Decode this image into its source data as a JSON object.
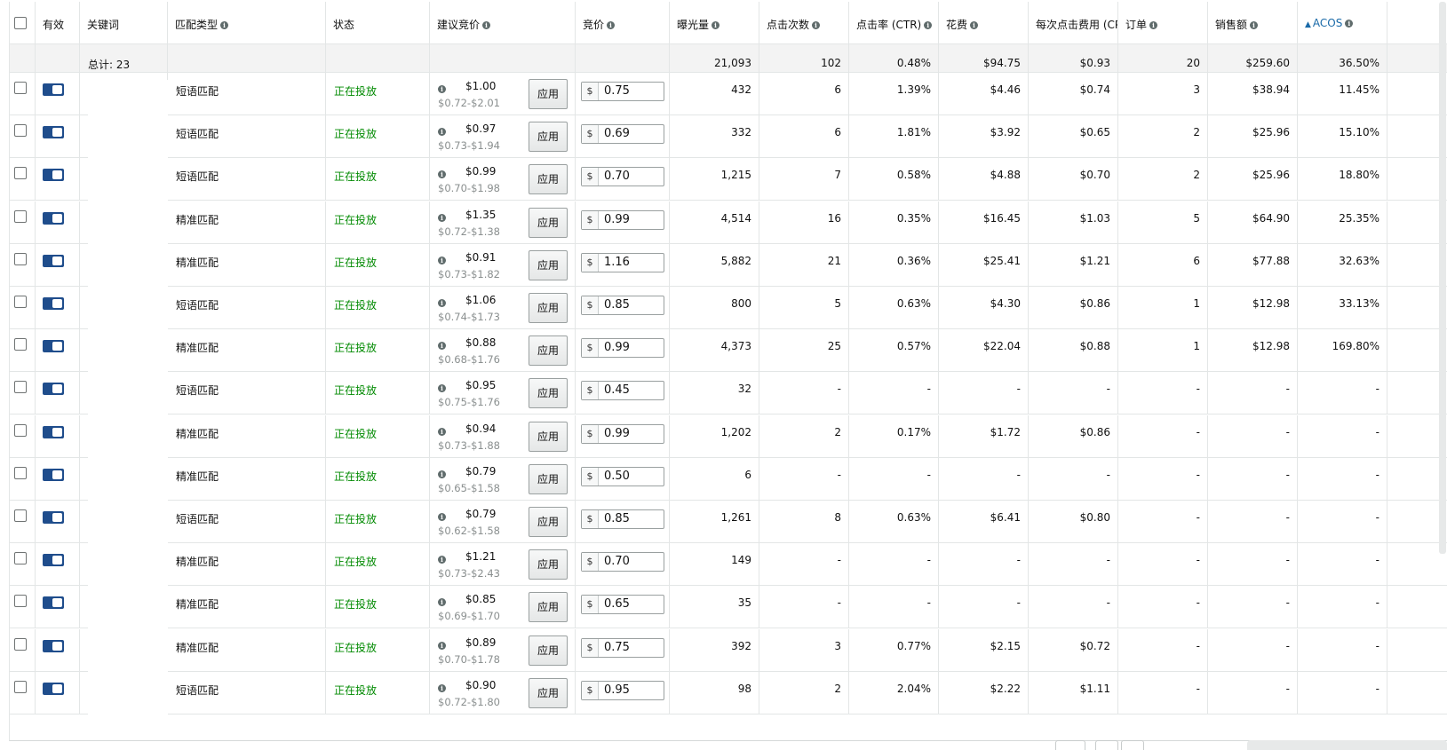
{
  "header": {
    "enabled": "有效",
    "keyword": "关键词",
    "match_type": "匹配类型",
    "status": "状态",
    "suggested_bid": "建议竞价",
    "bid": "竞价",
    "impressions": "曝光量",
    "clicks": "点击次数",
    "ctr": "点击率 (CTR)",
    "spend": "花费",
    "cpc": "每次点击费用 (CPC)",
    "orders": "订单",
    "sales": "销售额",
    "acos": "ACOS"
  },
  "totals": {
    "label": "总计: 23",
    "impressions": "21,093",
    "clicks": "102",
    "ctr": "0.48%",
    "spend": "$94.75",
    "cpc": "$0.93",
    "orders": "20",
    "sales": "$259.60",
    "acos": "36.50%"
  },
  "apply_label": "应用",
  "currency_symbol": "$",
  "status_color": "#008a00",
  "toggle_color": "#1f4d8c",
  "rows": [
    {
      "match": "短语匹配",
      "status": "正在投放",
      "sug": "$1.00",
      "range": "$0.72-$2.01",
      "bid": "0.75",
      "impr": "432",
      "clicks": "6",
      "ctr": "1.39%",
      "spend": "$4.46",
      "cpc": "$0.74",
      "orders": "3",
      "sales": "$38.94",
      "acos": "11.45%"
    },
    {
      "match": "短语匹配",
      "status": "正在投放",
      "sug": "$0.97",
      "range": "$0.73-$1.94",
      "bid": "0.69",
      "impr": "332",
      "clicks": "6",
      "ctr": "1.81%",
      "spend": "$3.92",
      "cpc": "$0.65",
      "orders": "2",
      "sales": "$25.96",
      "acos": "15.10%"
    },
    {
      "match": "短语匹配",
      "status": "正在投放",
      "sug": "$0.99",
      "range": "$0.70-$1.98",
      "bid": "0.70",
      "impr": "1,215",
      "clicks": "7",
      "ctr": "0.58%",
      "spend": "$4.88",
      "cpc": "$0.70",
      "orders": "2",
      "sales": "$25.96",
      "acos": "18.80%"
    },
    {
      "match": "精准匹配",
      "status": "正在投放",
      "sug": "$1.35",
      "range": "$0.72-$1.38",
      "bid": "0.99",
      "impr": "4,514",
      "clicks": "16",
      "ctr": "0.35%",
      "spend": "$16.45",
      "cpc": "$1.03",
      "orders": "5",
      "sales": "$64.90",
      "acos": "25.35%"
    },
    {
      "match": "精准匹配",
      "status": "正在投放",
      "sug": "$0.91",
      "range": "$0.73-$1.82",
      "bid": "1.16",
      "impr": "5,882",
      "clicks": "21",
      "ctr": "0.36%",
      "spend": "$25.41",
      "cpc": "$1.21",
      "orders": "6",
      "sales": "$77.88",
      "acos": "32.63%"
    },
    {
      "match": "短语匹配",
      "status": "正在投放",
      "sug": "$1.06",
      "range": "$0.74-$1.73",
      "bid": "0.85",
      "impr": "800",
      "clicks": "5",
      "ctr": "0.63%",
      "spend": "$4.30",
      "cpc": "$0.86",
      "orders": "1",
      "sales": "$12.98",
      "acos": "33.13%"
    },
    {
      "match": "精准匹配",
      "status": "正在投放",
      "sug": "$0.88",
      "range": "$0.68-$1.76",
      "bid": "0.99",
      "impr": "4,373",
      "clicks": "25",
      "ctr": "0.57%",
      "spend": "$22.04",
      "cpc": "$0.88",
      "orders": "1",
      "sales": "$12.98",
      "acos": "169.80%"
    },
    {
      "match": "短语匹配",
      "status": "正在投放",
      "sug": "$0.95",
      "range": "$0.75-$1.76",
      "bid": "0.45",
      "impr": "32",
      "clicks": "-",
      "ctr": "-",
      "spend": "-",
      "cpc": "-",
      "orders": "-",
      "sales": "-",
      "acos": "-"
    },
    {
      "match": "精准匹配",
      "status": "正在投放",
      "sug": "$0.94",
      "range": "$0.73-$1.88",
      "bid": "0.99",
      "impr": "1,202",
      "clicks": "2",
      "ctr": "0.17%",
      "spend": "$1.72",
      "cpc": "$0.86",
      "orders": "-",
      "sales": "-",
      "acos": "-"
    },
    {
      "match": "精准匹配",
      "status": "正在投放",
      "sug": "$0.79",
      "range": "$0.65-$1.58",
      "bid": "0.50",
      "impr": "6",
      "clicks": "-",
      "ctr": "-",
      "spend": "-",
      "cpc": "-",
      "orders": "-",
      "sales": "-",
      "acos": "-"
    },
    {
      "match": "短语匹配",
      "status": "正在投放",
      "sug": "$0.79",
      "range": "$0.62-$1.58",
      "bid": "0.85",
      "impr": "1,261",
      "clicks": "8",
      "ctr": "0.63%",
      "spend": "$6.41",
      "cpc": "$0.80",
      "orders": "-",
      "sales": "-",
      "acos": "-"
    },
    {
      "match": "精准匹配",
      "status": "正在投放",
      "sug": "$1.21",
      "range": "$0.73-$2.43",
      "bid": "0.70",
      "impr": "149",
      "clicks": "-",
      "ctr": "-",
      "spend": "-",
      "cpc": "-",
      "orders": "-",
      "sales": "-",
      "acos": "-"
    },
    {
      "match": "精准匹配",
      "status": "正在投放",
      "sug": "$0.85",
      "range": "$0.69-$1.70",
      "bid": "0.65",
      "impr": "35",
      "clicks": "-",
      "ctr": "-",
      "spend": "-",
      "cpc": "-",
      "orders": "-",
      "sales": "-",
      "acos": "-"
    },
    {
      "match": "精准匹配",
      "status": "正在投放",
      "sug": "$0.89",
      "range": "$0.70-$1.78",
      "bid": "0.75",
      "impr": "392",
      "clicks": "3",
      "ctr": "0.77%",
      "spend": "$2.15",
      "cpc": "$0.72",
      "orders": "-",
      "sales": "-",
      "acos": "-"
    },
    {
      "match": "短语匹配",
      "status": "正在投放",
      "sug": "$0.90",
      "range": "$0.72-$1.80",
      "bid": "0.95",
      "impr": "98",
      "clicks": "2",
      "ctr": "2.04%",
      "spend": "$2.22",
      "cpc": "$1.11",
      "orders": "-",
      "sales": "-",
      "acos": "-"
    }
  ]
}
